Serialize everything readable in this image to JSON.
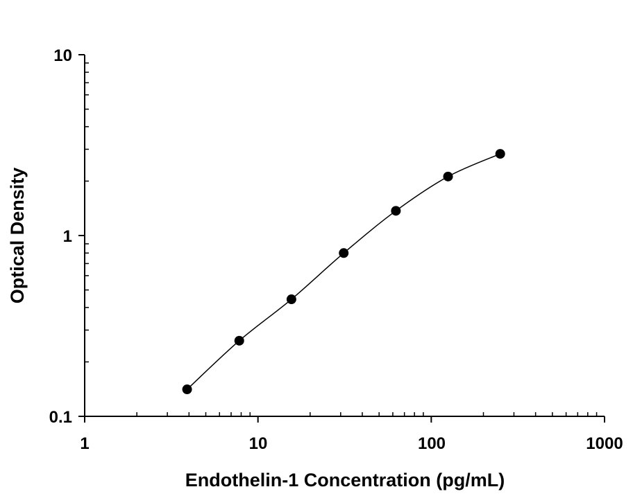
{
  "chart_data": {
    "type": "scatter",
    "title": "",
    "xlabel": "Endothelin-1 Concentration (pg/mL)",
    "ylabel": "Optical Density",
    "x_scale": "log",
    "y_scale": "log",
    "xlim": [
      1,
      1000
    ],
    "ylim": [
      0.1,
      10
    ],
    "x_ticks": [
      1,
      10,
      100,
      1000
    ],
    "x_tick_labels": [
      "1",
      "10",
      "100",
      "1000"
    ],
    "y_ticks": [
      0.1,
      1,
      10
    ],
    "y_tick_labels": [
      "0.1",
      "1",
      "10"
    ],
    "grid": false,
    "legend": "none",
    "fit_curve": true,
    "colors": {
      "points": "#000000",
      "curve": "#000000",
      "axes": "#000000"
    },
    "series": [
      {
        "x": [
          3.9,
          7.8,
          15.6,
          31.25,
          62.5,
          125,
          250
        ],
        "y": [
          0.141,
          0.262,
          0.444,
          0.8,
          1.37,
          2.12,
          2.83
        ]
      }
    ]
  }
}
